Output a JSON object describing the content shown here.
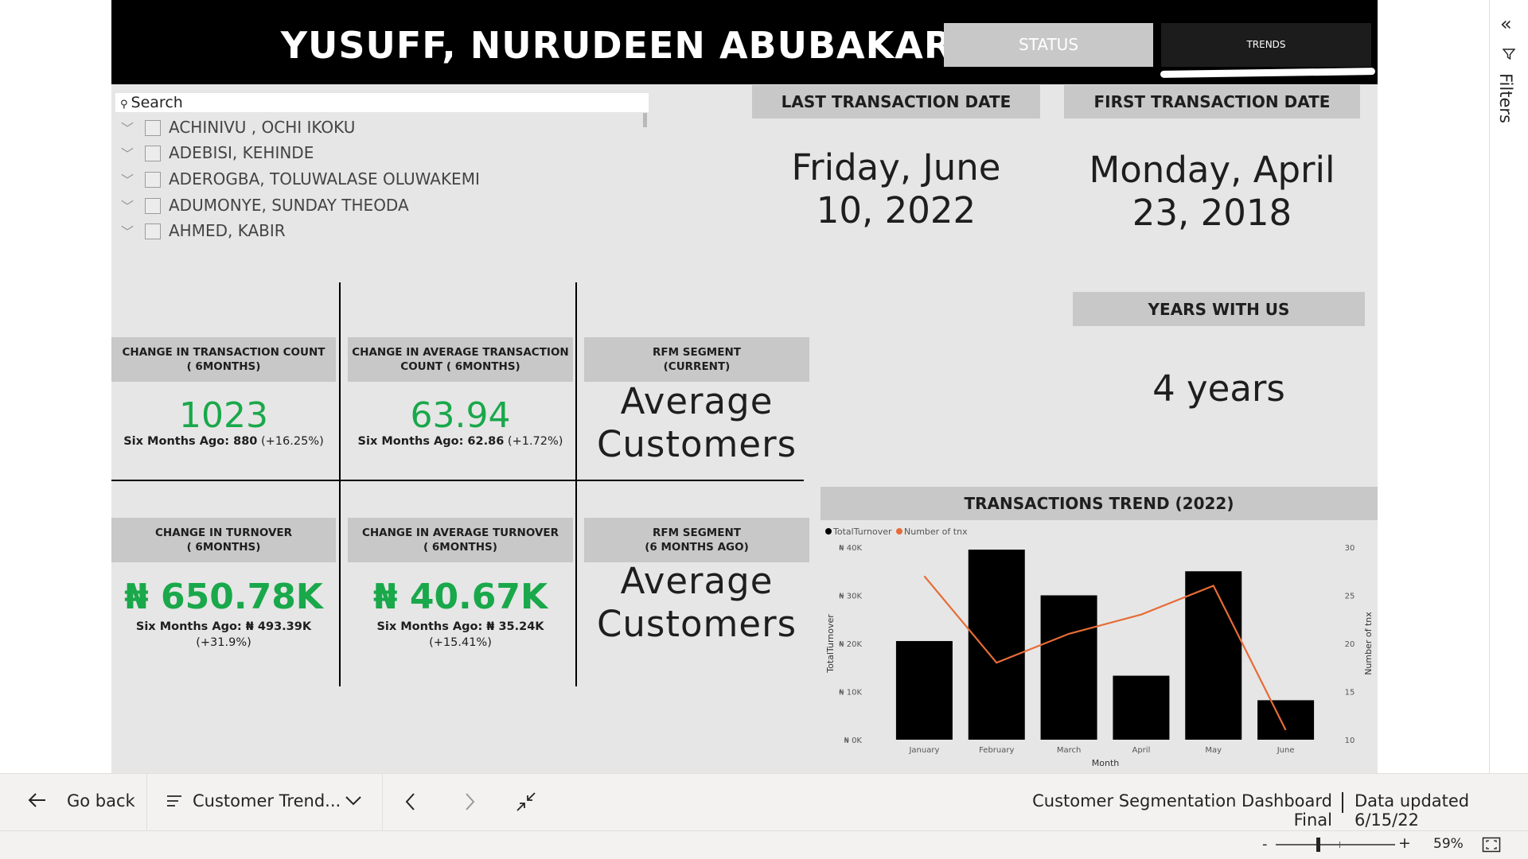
{
  "report": {
    "customer_name": "YUSUFF, NURUDEEN ABUBAKAR",
    "nav_buttons": {
      "status": "STATUS",
      "trends": "TRENDS"
    }
  },
  "slicer": {
    "search_placeholder": "Search",
    "items": [
      "ACHINIVU , OCHI IKOKU",
      "ADEBISI, KEHINDE",
      "ADEROGBA, TOLUWALASE OLUWAKEMI",
      "ADUMONYE, SUNDAY THEODA",
      "AHMED, KABIR"
    ]
  },
  "cards": {
    "last_transaction": {
      "label": "LAST TRANSACTION DATE",
      "line1": "Friday, June",
      "line2": "10, 2022"
    },
    "first_transaction": {
      "label": "FIRST TRANSACTION DATE",
      "line1": "Monday, April",
      "line2": "23, 2018"
    },
    "years_with_us": {
      "label": "YEARS WITH US",
      "value": "4 years"
    }
  },
  "kpis": {
    "tx_count": {
      "label1": "CHANGE IN TRANSACTION COUNT",
      "label2": "( 6MONTHS)",
      "value": "1023",
      "sub_label": "Six Months Ago: 880",
      "sub_change": " (+16.25%)"
    },
    "avg_tx_count": {
      "label1": "CHANGE IN AVERAGE TRANSACTION",
      "label2": "COUNT ( 6MONTHS)",
      "value": "63.94",
      "sub_label": "Six Months Ago: 62.86",
      "sub_change": " (+1.72%)"
    },
    "rfm_current": {
      "label1": "RFM SEGMENT",
      "label2": "(CURRENT)",
      "line1": "Average",
      "line2": "Customers"
    },
    "turnover": {
      "label1": "CHANGE IN TURNOVER",
      "label2": "( 6MONTHS)",
      "value": "₦ 650.78K",
      "sub_label": "Six Months Ago: ₦ 493.39K",
      "sub_change": "(+31.9%)"
    },
    "avg_turnover": {
      "label1": "CHANGE IN AVERAGE TURNOVER",
      "label2": "( 6MONTHS)",
      "value": "₦ 40.67K",
      "sub_label": "Six Months Ago: ₦ 35.24K",
      "sub_change": "(+15.41%)"
    },
    "rfm_6mo": {
      "label1": "RFM SEGMENT",
      "label2": "(6 MONTHS AGO)",
      "line1": "Average",
      "line2": "Customers"
    }
  },
  "chart_data": {
    "type": "bar",
    "title": "TRANSACTIONS TREND (2022)",
    "xlabel": "Month",
    "ylabel": "TotalTurnover",
    "y2label": "Number of tnx",
    "categories": [
      "January",
      "February",
      "March",
      "April",
      "May",
      "June"
    ],
    "ylim": [
      0,
      40000
    ],
    "y2lim": [
      10,
      30
    ],
    "yticks": [
      "₦ 0K",
      "₦ 10K",
      "₦ 20K",
      "₦ 30K",
      "₦ 40K"
    ],
    "y2ticks": [
      "10",
      "15",
      "20",
      "25",
      "30"
    ],
    "legend_position": "top-left",
    "series": [
      {
        "name": "TotalTurnover",
        "type": "bar",
        "color": "#000000",
        "values": [
          20500,
          39500,
          30000,
          13300,
          35000,
          8200
        ]
      },
      {
        "name": "Number of tnx",
        "type": "line",
        "axis": "right",
        "color": "#e66c37",
        "values": [
          27,
          18,
          21,
          23,
          26,
          11
        ]
      }
    ]
  },
  "bottom_bar": {
    "go_back": "Go back",
    "page_name": "Customer Trend...",
    "report_name": "Customer Segmentation Dashboard Final",
    "data_updated": "Data updated 6/15/22"
  },
  "status_bar": {
    "zoom": "59%",
    "zoom_level": 0.35
  },
  "filters_pane": {
    "label": "Filters"
  }
}
